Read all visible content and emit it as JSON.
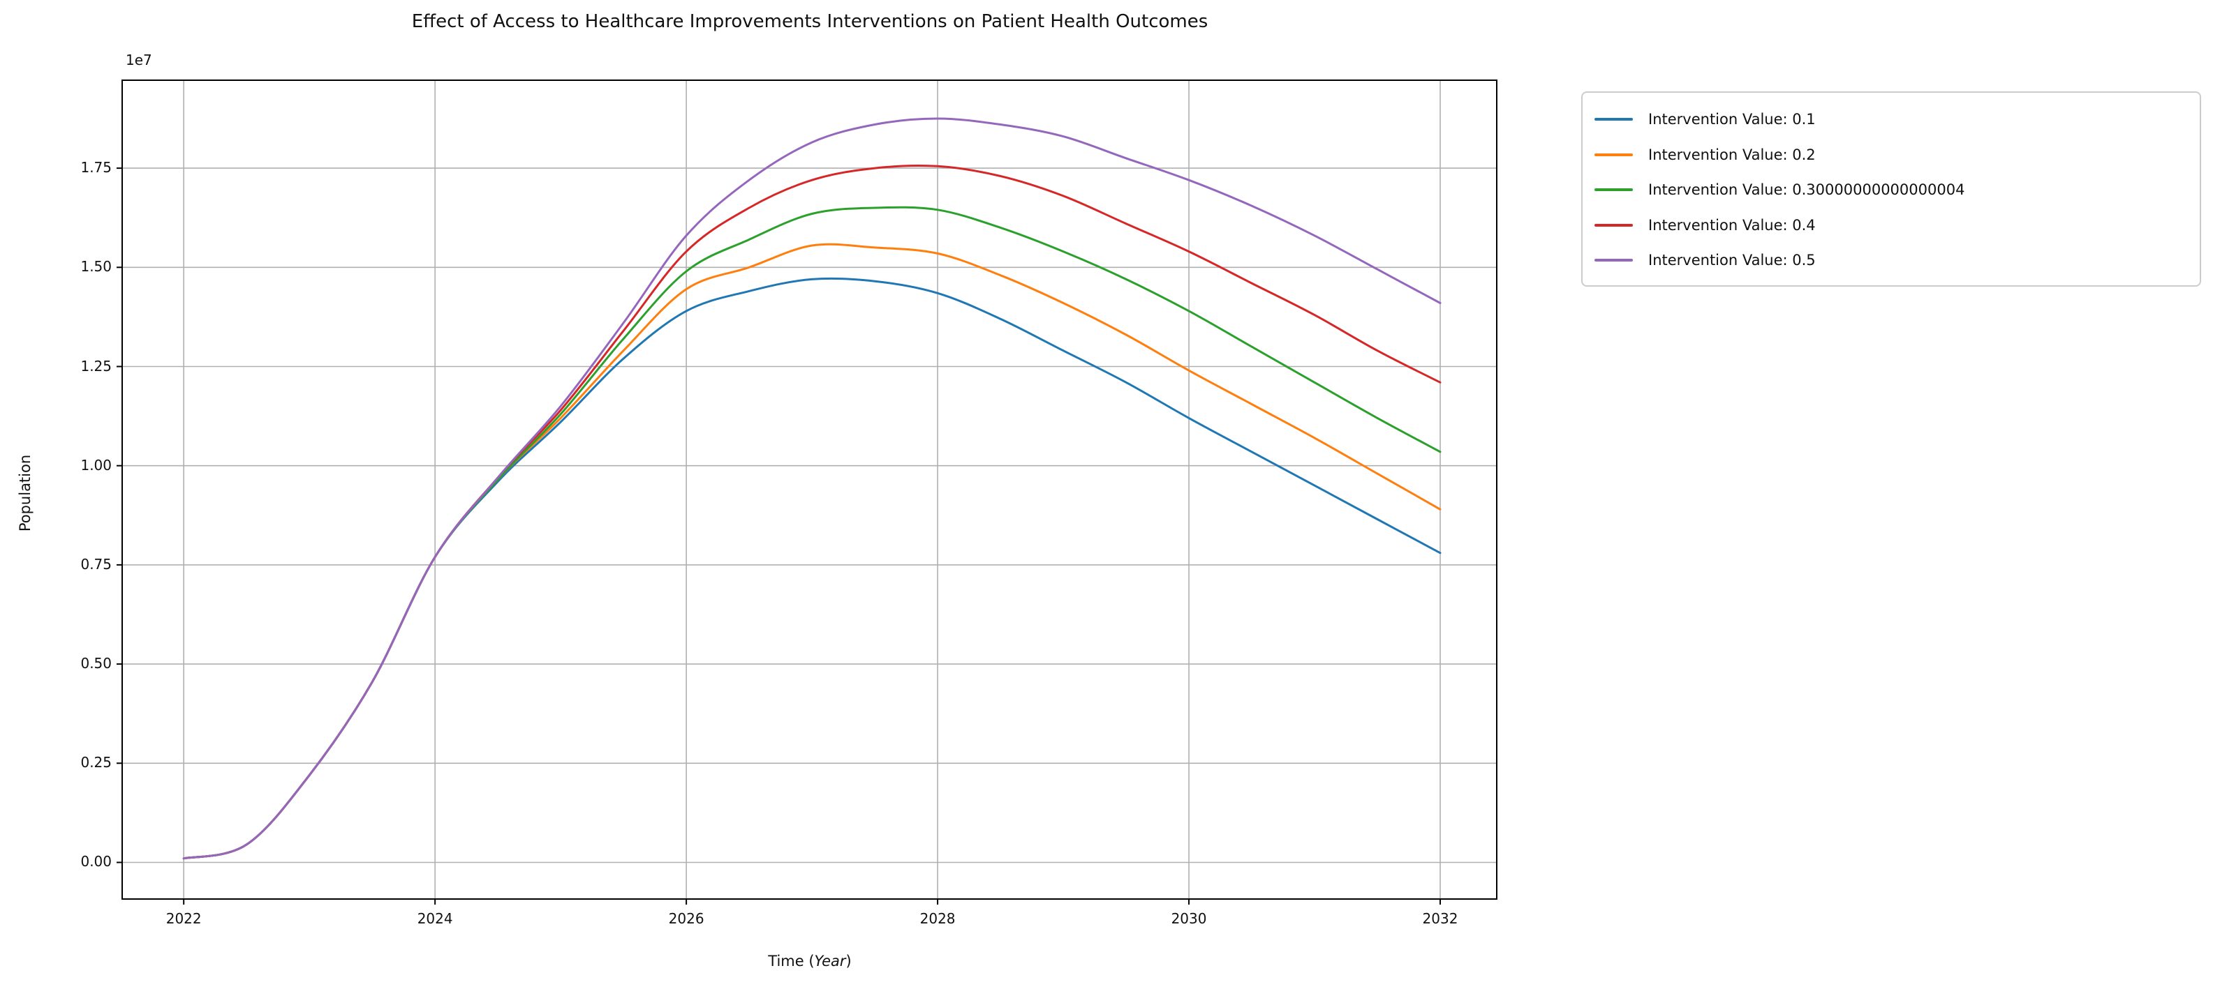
{
  "chart_data": {
    "type": "line",
    "title": "Effect of Access to Healthcare Improvements Interventions on Patient Health Outcomes",
    "xlabel": "Time (Year)",
    "xlabel_parts": {
      "prefix": "Time (",
      "italic": "Year",
      "suffix": ")"
    },
    "ylabel": "Population",
    "y_offset_label": "1e7",
    "y_unit_multiplier": 10000000,
    "xlim": [
      2021.51,
      2032.45
    ],
    "ylim_1e7": [
      -0.0923,
      1.9717
    ],
    "xticks": [
      2022,
      2024,
      2026,
      2028,
      2030,
      2032
    ],
    "xticklabels": [
      "2022",
      "2024",
      "2026",
      "2028",
      "2030",
      "2032"
    ],
    "yticks_1e7": [
      0.0,
      0.25,
      0.5,
      0.75,
      1.0,
      1.25,
      1.5,
      1.75
    ],
    "yticklabels": [
      "0.00",
      "0.25",
      "0.50",
      "0.75",
      "1.00",
      "1.25",
      "1.50",
      "1.75"
    ],
    "grid": true,
    "grid_color": "#b0b0b0",
    "axis_color": "#000000",
    "legend_position": "outside-upper-right",
    "x": [
      2022,
      2022.5,
      2023,
      2023.5,
      2024,
      2024.5,
      2025,
      2025.5,
      2026,
      2026.5,
      2027,
      2027.5,
      2028,
      2028.5,
      2029,
      2029.5,
      2030,
      2030.5,
      2031,
      2031.5,
      2032
    ],
    "series": [
      {
        "label": "Intervention Value: 0.1",
        "color": "#1f77b4",
        "values_1e7": [
          0.01,
          0.045,
          0.22,
          0.455,
          0.77,
          0.96,
          1.11,
          1.27,
          1.39,
          1.44,
          1.47,
          1.465,
          1.435,
          1.37,
          1.29,
          1.21,
          1.12,
          1.035,
          0.95,
          0.865,
          0.78
        ]
      },
      {
        "label": "Intervention Value: 0.2",
        "color": "#ff7f0e",
        "values_1e7": [
          0.01,
          0.045,
          0.22,
          0.455,
          0.77,
          0.965,
          1.12,
          1.29,
          1.445,
          1.5,
          1.555,
          1.55,
          1.535,
          1.48,
          1.41,
          1.33,
          1.24,
          1.155,
          1.07,
          0.98,
          0.89
        ]
      },
      {
        "label": "Intervention Value: 0.30000000000000004",
        "color": "#2ca02c",
        "values_1e7": [
          0.01,
          0.045,
          0.22,
          0.455,
          0.77,
          0.965,
          1.13,
          1.32,
          1.49,
          1.57,
          1.635,
          1.65,
          1.645,
          1.6,
          1.54,
          1.47,
          1.39,
          1.3,
          1.21,
          1.12,
          1.035
        ]
      },
      {
        "label": "Intervention Value: 0.4",
        "color": "#d62728",
        "values_1e7": [
          0.01,
          0.045,
          0.22,
          0.455,
          0.77,
          0.97,
          1.14,
          1.34,
          1.54,
          1.65,
          1.72,
          1.75,
          1.755,
          1.73,
          1.68,
          1.61,
          1.54,
          1.46,
          1.38,
          1.29,
          1.21
        ]
      },
      {
        "label": "Intervention Value: 0.5",
        "color": "#9467bd",
        "values_1e7": [
          0.01,
          0.045,
          0.22,
          0.455,
          0.77,
          0.97,
          1.15,
          1.36,
          1.58,
          1.72,
          1.815,
          1.86,
          1.875,
          1.86,
          1.83,
          1.775,
          1.72,
          1.655,
          1.58,
          1.495,
          1.41
        ]
      }
    ]
  }
}
